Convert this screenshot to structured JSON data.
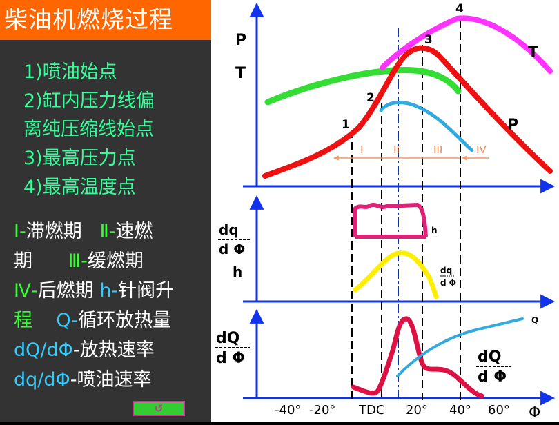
{
  "title": "柴油机燃烧过程",
  "points": [
    "1)喷油始点",
    "2)缸内压力线偏",
    "离纯压缩线始点",
    "3)最高压力点",
    "4)最高温度点"
  ],
  "legend": {
    "l1a": "Ⅰ-",
    "l1b": "滞燃期",
    "l1c": "Ⅱ-",
    "l1d": "速燃",
    "l2a": "期",
    "l2b": "Ⅲ-",
    "l2c": "缓燃期",
    "l3a": "Ⅳ-",
    "l3b": "后燃期",
    "l3c": "h-",
    "l3d": "针阀升",
    "l4a": "程",
    "l4b": "Q-",
    "l4c": "循环放热量",
    "l5a": "dQ/dΦ",
    "l5b": "-放热速率",
    "l6a": "dq/dΦ",
    "l6b": "-喷油速率"
  },
  "button": {
    "glyph": "↺"
  },
  "diagram": {
    "top_axis": {
      "p_label": "P",
      "t_label": "T"
    },
    "curve_labels": {
      "t": "T",
      "p": "P",
      "h": "h"
    },
    "point_labels": [
      "1",
      "2",
      "3",
      "4"
    ],
    "phases": [
      "I",
      "II",
      "III",
      "IV"
    ],
    "mid_axis": {
      "dq_num": "dq",
      "dq_den": "d Φ",
      "h": "h"
    },
    "mid_curve_label": {
      "num": "dq",
      "den": "d Φ"
    },
    "bot_axis": {
      "num": "dQ",
      "den": "d Φ"
    },
    "bot_curve_label": {
      "q": "Q",
      "num": "dQ",
      "den": "d Φ"
    },
    "x_ticks": [
      "-40°",
      "-20°",
      "TDC",
      "20°",
      "40°",
      "60°"
    ],
    "x_label": "Φ"
  },
  "colors": {
    "pressure": "#ee1111",
    "temperature": "#ff33ff",
    "compression": "#33dd33",
    "injection": "#33aadd",
    "needle_lift": "#dd2277",
    "inj_rate": "#ffee00",
    "heat_release_rate": "#dd1144",
    "axis": "#1133ee"
  }
}
